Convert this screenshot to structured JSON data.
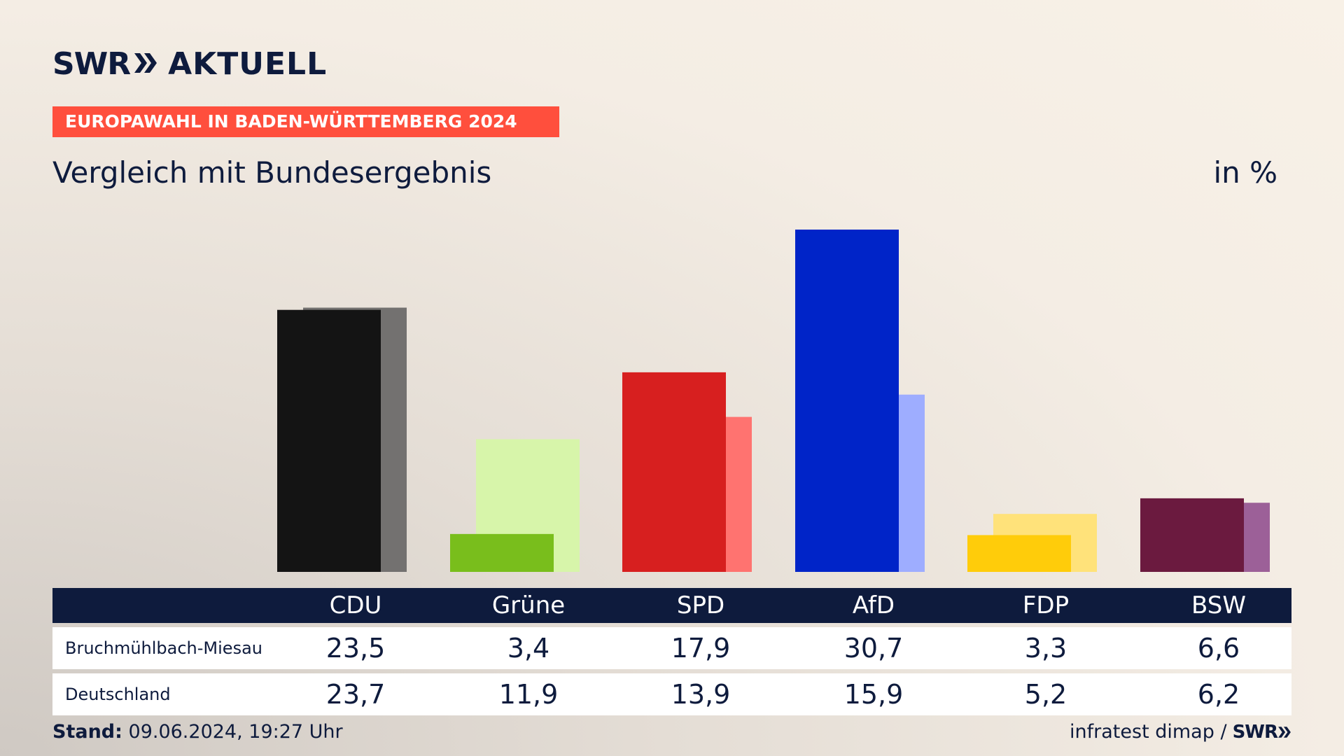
{
  "header": {
    "logo_left": "SWR",
    "logo_right": "AKTUELL",
    "banner": "EUROPAWAHL IN BADEN-WÜRTTEMBERG 2024",
    "subtitle": "Vergleich mit Bundesergebnis",
    "unit": "in %"
  },
  "chart_data": {
    "type": "bar",
    "categories": [
      "CDU",
      "Grüne",
      "SPD",
      "AfD",
      "FDP",
      "BSW"
    ],
    "series": [
      {
        "name": "Bruchmühlbach-Miesau",
        "values": [
          23.5,
          3.4,
          17.9,
          30.7,
          3.3,
          6.6
        ]
      },
      {
        "name": "Deutschland",
        "values": [
          23.7,
          11.9,
          13.9,
          15.9,
          5.2,
          6.2
        ]
      }
    ],
    "colors_primary": [
      "#141414",
      "#79be1c",
      "#d71f1f",
      "#0024c8",
      "#ffcc0a",
      "#6b1a3f"
    ],
    "colors_secondary": [
      "#737170",
      "#d7f5aa",
      "#ff7370",
      "#9eadff",
      "#ffe27a",
      "#9c6098"
    ],
    "ylim": [
      0,
      31
    ],
    "values_display": {
      "Bruchmühlbach-Miesau": [
        "23,5",
        "3,4",
        "17,9",
        "30,7",
        "3,3",
        "6,6"
      ],
      "Deutschland": [
        "23,7",
        "11,9",
        "13,9",
        "15,9",
        "5,2",
        "6,2"
      ]
    }
  },
  "table": {
    "row1_label": "Bruchmühlbach-Miesau",
    "row2_label": "Deutschland"
  },
  "footer": {
    "stand_label": "Stand:",
    "stand_value": "09.06.2024, 19:27 Uhr",
    "source": "infratest dimap /",
    "source_logo": "SWR"
  }
}
